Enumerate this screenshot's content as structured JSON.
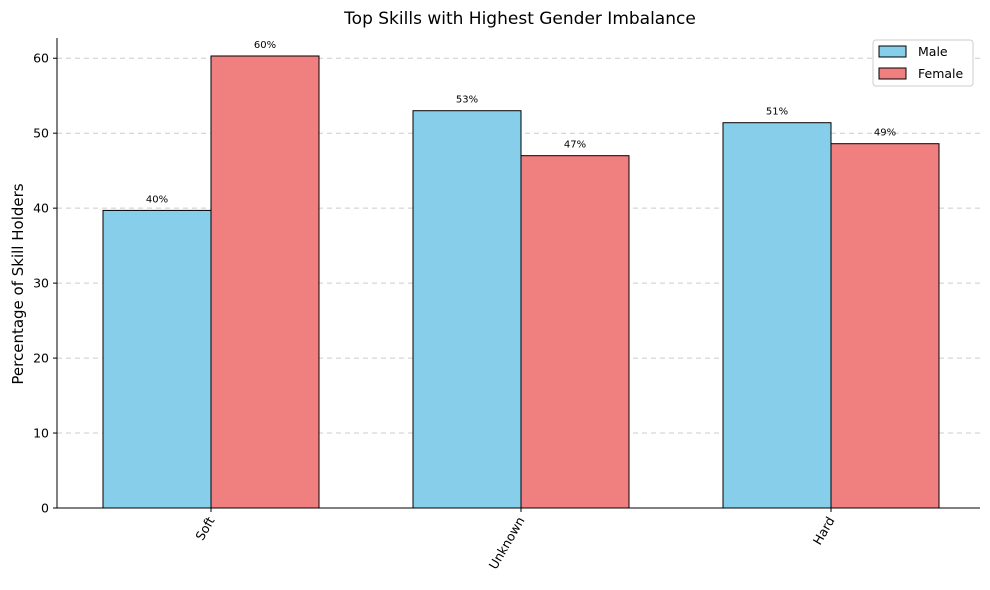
{
  "chart_data": {
    "type": "bar",
    "title": "Top Skills with Highest Gender Imbalance",
    "xlabel": "",
    "ylabel": "Percentage of Skill Holders",
    "categories": [
      "Soft",
      "Unknown",
      "Hard"
    ],
    "series": [
      {
        "name": "Male",
        "values": [
          39.7,
          53.0,
          51.4
        ],
        "labels": [
          "40%",
          "53%",
          "51%"
        ],
        "color": "#87ceeb"
      },
      {
        "name": "Female",
        "values": [
          60.3,
          47.0,
          48.6
        ],
        "labels": [
          "60%",
          "47%",
          "49%"
        ],
        "color": "#f08080"
      }
    ],
    "ylim": [
      0,
      62.7
    ],
    "yticks": [
      0,
      10,
      20,
      30,
      40,
      50,
      60
    ],
    "grid": "y-dashed",
    "legend": "top-right"
  }
}
